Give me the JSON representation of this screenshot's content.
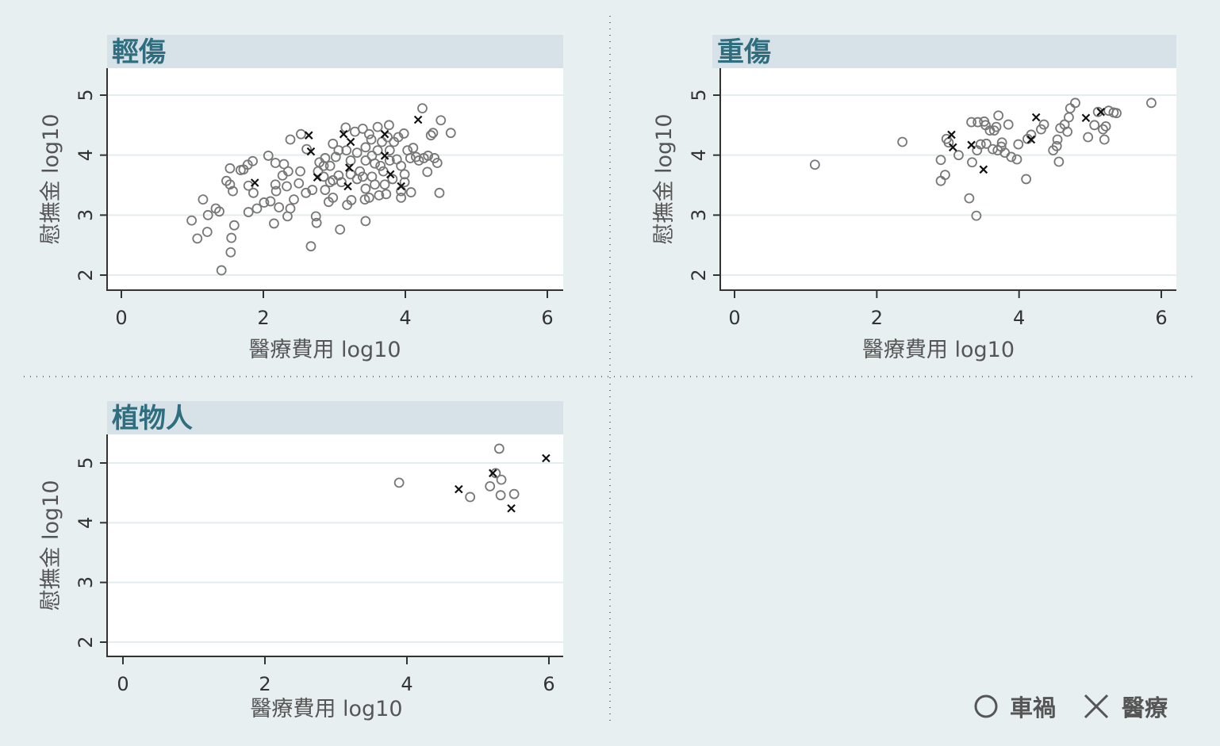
{
  "legend": {
    "items": [
      {
        "marker": "circle",
        "label": "車禍"
      },
      {
        "marker": "x",
        "label": "醫療"
      }
    ]
  },
  "colors": {
    "background": "#e8eff1",
    "title_bar": "#d6e2e8",
    "title_text": "#2f6e7e",
    "circle": "#777777",
    "cross": "#111111"
  },
  "chart_data": [
    {
      "type": "scatter",
      "title": "輕傷",
      "xlabel": "醫療費用 log10",
      "ylabel": "慰撫金 log10",
      "xlim": [
        0,
        6
      ],
      "ylim": [
        2,
        5
      ],
      "xticks": [
        "0",
        "2",
        "4",
        "6"
      ],
      "yticks": [
        "2",
        "3",
        "4",
        "5"
      ],
      "grid": true,
      "series": [
        {
          "name": "車禍",
          "marker": "circle",
          "points": [
            [
              0.99,
              2.91
            ],
            [
              1.07,
              2.61
            ],
            [
              1.21,
              2.72
            ],
            [
              1.15,
              3.26
            ],
            [
              1.22,
              3.0
            ],
            [
              1.33,
              3.11
            ],
            [
              1.38,
              3.06
            ],
            [
              1.41,
              2.08
            ],
            [
              1.54,
              2.38
            ],
            [
              1.55,
              2.62
            ],
            [
              1.59,
              2.83
            ],
            [
              1.53,
              3.78
            ],
            [
              1.48,
              3.57
            ],
            [
              1.53,
              3.51
            ],
            [
              1.57,
              3.4
            ],
            [
              1.68,
              3.75
            ],
            [
              1.72,
              3.76
            ],
            [
              1.78,
              3.84
            ],
            [
              1.85,
              3.9
            ],
            [
              1.79,
              3.49
            ],
            [
              1.86,
              3.37
            ],
            [
              1.79,
              3.05
            ],
            [
              1.91,
              3.11
            ],
            [
              2.01,
              3.21
            ],
            [
              2.1,
              3.23
            ],
            [
              2.15,
              2.86
            ],
            [
              2.22,
              3.13
            ],
            [
              2.34,
              2.98
            ],
            [
              2.38,
              3.11
            ],
            [
              2.43,
              3.26
            ],
            [
              2.07,
              3.99
            ],
            [
              2.17,
              3.87
            ],
            [
              2.29,
              3.85
            ],
            [
              2.35,
              3.73
            ],
            [
              2.27,
              3.66
            ],
            [
              2.17,
              3.51
            ],
            [
              2.18,
              3.4
            ],
            [
              2.33,
              3.48
            ],
            [
              2.5,
              3.53
            ],
            [
              2.52,
              3.73
            ],
            [
              2.38,
              4.26
            ],
            [
              2.53,
              4.35
            ],
            [
              2.61,
              4.1
            ],
            [
              2.69,
              3.42
            ],
            [
              2.6,
              3.37
            ],
            [
              2.87,
              3.42
            ],
            [
              2.92,
              3.22
            ],
            [
              2.98,
              3.29
            ],
            [
              2.74,
              2.98
            ],
            [
              2.75,
              2.87
            ],
            [
              2.67,
              2.48
            ],
            [
              3.08,
              2.76
            ],
            [
              3.18,
              3.17
            ],
            [
              3.24,
              3.25
            ],
            [
              3.44,
              2.9
            ],
            [
              3.43,
              3.26
            ],
            [
              3.49,
              3.29
            ],
            [
              3.63,
              3.33
            ],
            [
              3.73,
              3.35
            ],
            [
              3.94,
              3.29
            ],
            [
              4.08,
              3.38
            ],
            [
              3.99,
              3.68
            ],
            [
              4.31,
              3.72
            ],
            [
              4.48,
              3.37
            ],
            [
              4.45,
              3.87
            ],
            [
              4.32,
              3.99
            ],
            [
              4.24,
              4.78
            ],
            [
              4.5,
              4.58
            ],
            [
              4.39,
              4.37
            ],
            [
              4.36,
              4.33
            ],
            [
              4.64,
              4.37
            ],
            [
              3.98,
              4.36
            ],
            [
              3.77,
              4.5
            ],
            [
              3.61,
              4.47
            ],
            [
              3.4,
              4.44
            ],
            [
              3.16,
              4.46
            ],
            [
              3.29,
              4.39
            ],
            [
              2.98,
              4.19
            ],
            [
              2.87,
              3.95
            ],
            [
              2.79,
              3.88
            ],
            [
              2.94,
              3.82
            ],
            [
              3.06,
              4.08
            ],
            [
              3.02,
              3.97
            ],
            [
              2.77,
              3.73
            ],
            [
              2.85,
              3.64
            ],
            [
              3.06,
              3.66
            ],
            [
              3.1,
              3.55
            ],
            [
              3.32,
              4.04
            ],
            [
              3.44,
              4.13
            ],
            [
              3.52,
              4.26
            ],
            [
              3.61,
              4.08
            ],
            [
              3.44,
              3.91
            ],
            [
              3.36,
              3.73
            ],
            [
              3.32,
              3.6
            ],
            [
              3.53,
              3.64
            ],
            [
              3.57,
              3.51
            ],
            [
              3.44,
              3.44
            ],
            [
              3.65,
              3.82
            ],
            [
              3.78,
              4.08
            ],
            [
              3.84,
              4.22
            ],
            [
              3.9,
              4.3
            ],
            [
              3.88,
              3.93
            ],
            [
              3.94,
              3.82
            ],
            [
              3.82,
              3.6
            ],
            [
              3.71,
              3.51
            ],
            [
              4.03,
              4.08
            ],
            [
              4.07,
              3.95
            ],
            [
              4.15,
              3.97
            ],
            [
              4.26,
              3.95
            ],
            [
              4.11,
              4.12
            ],
            [
              3.99,
              3.55
            ],
            [
              3.94,
              3.4
            ],
            [
              3.57,
              3.86
            ],
            [
              3.23,
              3.91
            ],
            [
              3.17,
              4.08
            ],
            [
              3.53,
              3.99
            ],
            [
              3.69,
              3.73
            ],
            [
              3.78,
              3.91
            ],
            [
              3.4,
              3.64
            ],
            [
              3.23,
              3.68
            ],
            [
              2.94,
              3.55
            ],
            [
              2.85,
              3.82
            ],
            [
              3.75,
              4.3
            ],
            [
              3.67,
              4.22
            ],
            [
              3.49,
              4.35
            ],
            [
              2.98,
              3.58
            ],
            [
              4.41,
              3.95
            ],
            [
              4.19,
              3.91
            ]
          ]
        },
        {
          "name": "醫療",
          "marker": "x",
          "points": [
            [
              2.64,
              4.33
            ],
            [
              2.67,
              4.06
            ],
            [
              1.88,
              3.54
            ],
            [
              2.76,
              3.63
            ],
            [
              3.13,
              4.35
            ],
            [
              3.23,
              4.22
            ],
            [
              3.21,
              3.79
            ],
            [
              3.19,
              3.48
            ],
            [
              3.71,
              4.35
            ],
            [
              3.71,
              3.99
            ],
            [
              3.79,
              3.68
            ],
            [
              3.94,
              3.48
            ],
            [
              4.18,
              4.59
            ]
          ]
        }
      ]
    },
    {
      "type": "scatter",
      "title": "重傷",
      "xlabel": "醫療費用 log10",
      "ylabel": "慰撫金 log10",
      "xlim": [
        0,
        6
      ],
      "ylim": [
        2,
        5
      ],
      "xticks": [
        "0",
        "2",
        "4",
        "6"
      ],
      "yticks": [
        "2",
        "3",
        "4",
        "5"
      ],
      "grid": true,
      "series": [
        {
          "name": "車禍",
          "marker": "circle",
          "points": [
            [
              1.13,
              3.84
            ],
            [
              2.36,
              4.22
            ],
            [
              2.9,
              3.92
            ],
            [
              2.9,
              3.57
            ],
            [
              2.96,
              3.67
            ],
            [
              3.01,
              4.21
            ],
            [
              2.98,
              4.27
            ],
            [
              3.15,
              4.0
            ],
            [
              3.3,
              3.28
            ],
            [
              3.4,
              2.99
            ],
            [
              3.34,
              3.88
            ],
            [
              3.33,
              4.55
            ],
            [
              3.42,
              4.55
            ],
            [
              3.53,
              4.5
            ],
            [
              3.51,
              4.56
            ],
            [
              3.59,
              4.41
            ],
            [
              3.68,
              4.47
            ],
            [
              3.76,
              4.21
            ],
            [
              3.85,
              4.51
            ],
            [
              3.71,
              4.66
            ],
            [
              3.46,
              4.18
            ],
            [
              3.54,
              4.19
            ],
            [
              3.63,
              4.1
            ],
            [
              3.7,
              4.08
            ],
            [
              3.75,
              4.14
            ],
            [
              3.8,
              4.04
            ],
            [
              3.89,
              3.97
            ],
            [
              3.97,
              3.93
            ],
            [
              3.99,
              4.18
            ],
            [
              4.1,
              3.6
            ],
            [
              4.12,
              4.27
            ],
            [
              4.17,
              4.34
            ],
            [
              4.31,
              4.43
            ],
            [
              4.35,
              4.51
            ],
            [
              4.54,
              4.26
            ],
            [
              4.58,
              4.45
            ],
            [
              4.56,
              3.89
            ],
            [
              4.48,
              4.08
            ],
            [
              4.53,
              4.15
            ],
            [
              4.64,
              4.51
            ],
            [
              4.7,
              4.63
            ],
            [
              4.79,
              4.87
            ],
            [
              4.72,
              4.78
            ],
            [
              4.68,
              4.39
            ],
            [
              5.11,
              4.72
            ],
            [
              5.06,
              4.5
            ],
            [
              4.97,
              4.3
            ],
            [
              5.18,
              4.43
            ],
            [
              5.22,
              4.48
            ],
            [
              5.2,
              4.26
            ],
            [
              5.26,
              4.74
            ],
            [
              5.33,
              4.71
            ],
            [
              5.37,
              4.7
            ],
            [
              5.86,
              4.87
            ],
            [
              3.41,
              4.08
            ],
            [
              3.65,
              4.41
            ]
          ]
        },
        {
          "name": "醫療",
          "marker": "x",
          "points": [
            [
              3.05,
              4.34
            ],
            [
              3.07,
              4.13
            ],
            [
              3.33,
              4.17
            ],
            [
              3.5,
              3.76
            ],
            [
              4.24,
              4.63
            ],
            [
              4.17,
              4.26
            ],
            [
              4.94,
              4.62
            ],
            [
              5.15,
              4.72
            ]
          ]
        }
      ]
    },
    {
      "type": "scatter",
      "title": "植物人",
      "xlabel": "醫療費用 log10",
      "ylabel": "慰撫金 log10",
      "xlim": [
        0,
        6
      ],
      "ylim": [
        2,
        5
      ],
      "xticks": [
        "0",
        "2",
        "4",
        "6"
      ],
      "yticks": [
        "2",
        "3",
        "4",
        "5"
      ],
      "grid": true,
      "series": [
        {
          "name": "車禍",
          "marker": "circle",
          "points": [
            [
              3.89,
              4.67
            ],
            [
              4.89,
              4.43
            ],
            [
              5.17,
              4.61
            ],
            [
              5.25,
              4.83
            ],
            [
              5.3,
              5.24
            ],
            [
              5.33,
              4.72
            ],
            [
              5.32,
              4.46
            ],
            [
              5.51,
              4.48
            ]
          ]
        },
        {
          "name": "醫療",
          "marker": "x",
          "points": [
            [
              4.73,
              4.56
            ],
            [
              5.21,
              4.83
            ],
            [
              5.47,
              4.24
            ],
            [
              5.96,
              5.08
            ]
          ]
        }
      ]
    }
  ]
}
